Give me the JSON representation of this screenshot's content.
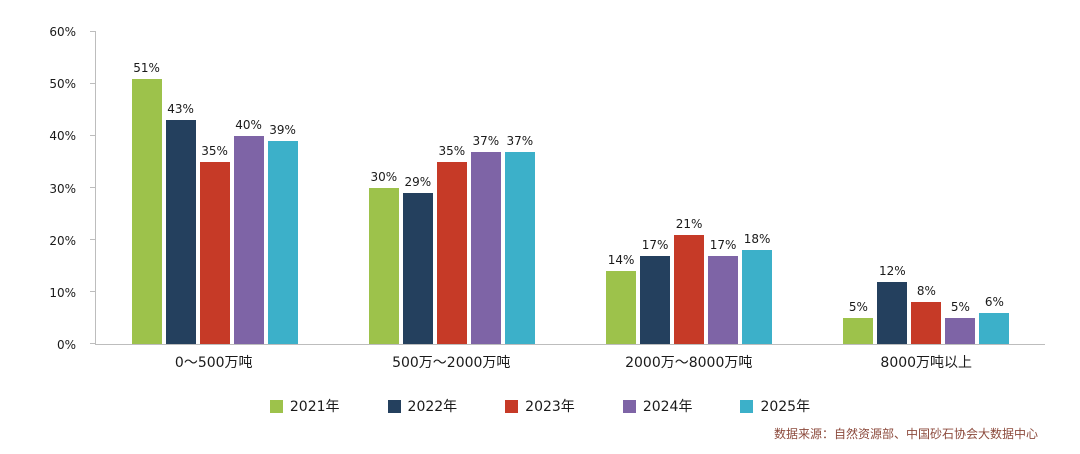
{
  "chart_data": {
    "type": "bar",
    "categories": [
      "0～500万吨",
      "500万～2000万吨",
      "2000万～8000万吨",
      "8000万吨以上"
    ],
    "series": [
      {
        "name": "2021年",
        "color": "#9dc24b",
        "values": [
          51,
          30,
          14,
          5
        ]
      },
      {
        "name": "2022年",
        "color": "#24405e",
        "values": [
          43,
          29,
          17,
          12
        ]
      },
      {
        "name": "2023年",
        "color": "#c63a27",
        "values": [
          35,
          35,
          21,
          8
        ]
      },
      {
        "name": "2024年",
        "color": "#7e64a6",
        "values": [
          40,
          37,
          17,
          5
        ]
      },
      {
        "name": "2025年",
        "color": "#3cb0c9",
        "values": [
          39,
          37,
          18,
          6
        ]
      }
    ],
    "title": "",
    "xlabel": "",
    "ylabel": "",
    "ylim": [
      0,
      60
    ],
    "ytick_step": 10,
    "ytick_labels": [
      "0%",
      "10%",
      "20%",
      "30%",
      "40%",
      "50%",
      "60%"
    ],
    "value_suffix": "%",
    "grid": false,
    "legend_position": "bottom"
  },
  "source_note": "数据来源：自然资源部、中国砂石协会大数据中心"
}
